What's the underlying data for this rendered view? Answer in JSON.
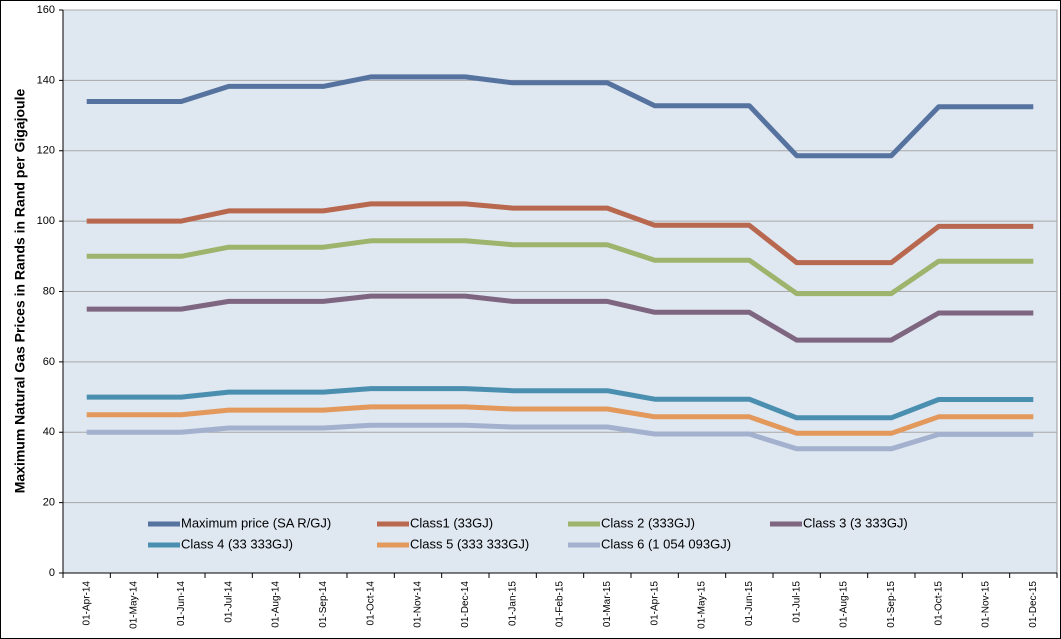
{
  "chart_data": {
    "type": "line",
    "y_label": "Maximum Natural Gas Prices in Rands in Rand per Gigajoule",
    "categories": [
      "01-Apr-14",
      "01-May-14",
      "01-Jun-14",
      "01-Jul-14",
      "01-Aug-14",
      "01-Sep-14",
      "01-Oct-14",
      "01-Nov-14",
      "01-Dec-14",
      "01-Jan-15",
      "01-Feb-15",
      "01-Mar-15",
      "01-Apr-15",
      "01-May-15",
      "01-Jun-15",
      "01-Jul-15",
      "01-Aug-15",
      "01-Sep-15",
      "01-Oct-15",
      "01-Nov-15",
      "01-Dec-15"
    ],
    "ylim": [
      0,
      160
    ],
    "yticks": [
      0,
      20,
      40,
      60,
      80,
      100,
      120,
      140,
      160
    ],
    "grid": true,
    "series": [
      {
        "name": "Maximum price (SA R/GJ)",
        "color": "#5673a0",
        "values": [
          134,
          134,
          134,
          138.3,
          138.3,
          138.3,
          141,
          141,
          141,
          139.3,
          139.3,
          139.3,
          132.8,
          132.8,
          132.8,
          118.6,
          118.6,
          118.6,
          132.5,
          132.5,
          132.5
        ]
      },
      {
        "name": "Class1 (33GJ)",
        "color": "#b8684f",
        "values": [
          100,
          100,
          100,
          102.9,
          102.9,
          102.9,
          104.9,
          104.9,
          104.9,
          103.7,
          103.7,
          103.7,
          98.8,
          98.8,
          98.8,
          88.2,
          88.2,
          88.2,
          98.5,
          98.5,
          98.5
        ]
      },
      {
        "name": "Class 2 (333GJ)",
        "color": "#9db46c",
        "values": [
          90,
          90,
          90,
          92.6,
          92.6,
          92.6,
          94.4,
          94.4,
          94.4,
          93.3,
          93.3,
          93.3,
          88.9,
          88.9,
          88.9,
          79.4,
          79.4,
          79.4,
          88.6,
          88.6,
          88.6
        ]
      },
      {
        "name": "Class 3 (3 333GJ)",
        "color": "#7f6680",
        "values": [
          75,
          75,
          75,
          77.2,
          77.2,
          77.2,
          78.7,
          78.7,
          78.7,
          77.2,
          77.2,
          77.2,
          74.1,
          74.1,
          74.1,
          66.2,
          66.2,
          66.2,
          73.9,
          73.9,
          73.9
        ]
      },
      {
        "name": "Class 4 (33 333GJ)",
        "color": "#4b8fb0",
        "values": [
          50,
          50,
          50,
          51.4,
          51.4,
          51.4,
          52.4,
          52.4,
          52.4,
          51.8,
          51.8,
          51.8,
          49.4,
          49.4,
          49.4,
          44.1,
          44.1,
          44.1,
          49.3,
          49.3,
          49.3
        ]
      },
      {
        "name": "Class 5 (333 333GJ)",
        "color": "#e2995b",
        "values": [
          45,
          45,
          45,
          46.3,
          46.3,
          46.3,
          47.2,
          47.2,
          47.2,
          46.6,
          46.6,
          46.6,
          44.4,
          44.4,
          44.4,
          39.7,
          39.7,
          39.7,
          44.4,
          44.4,
          44.4
        ]
      },
      {
        "name": "Class 6 (1 054 093GJ)",
        "color": "#a3b1cf",
        "values": [
          40,
          40,
          40,
          41.2,
          41.2,
          41.2,
          42,
          42,
          42,
          41.5,
          41.5,
          41.5,
          39.5,
          39.5,
          39.5,
          35.3,
          35.3,
          35.3,
          39.4,
          39.4,
          39.4
        ]
      }
    ]
  }
}
